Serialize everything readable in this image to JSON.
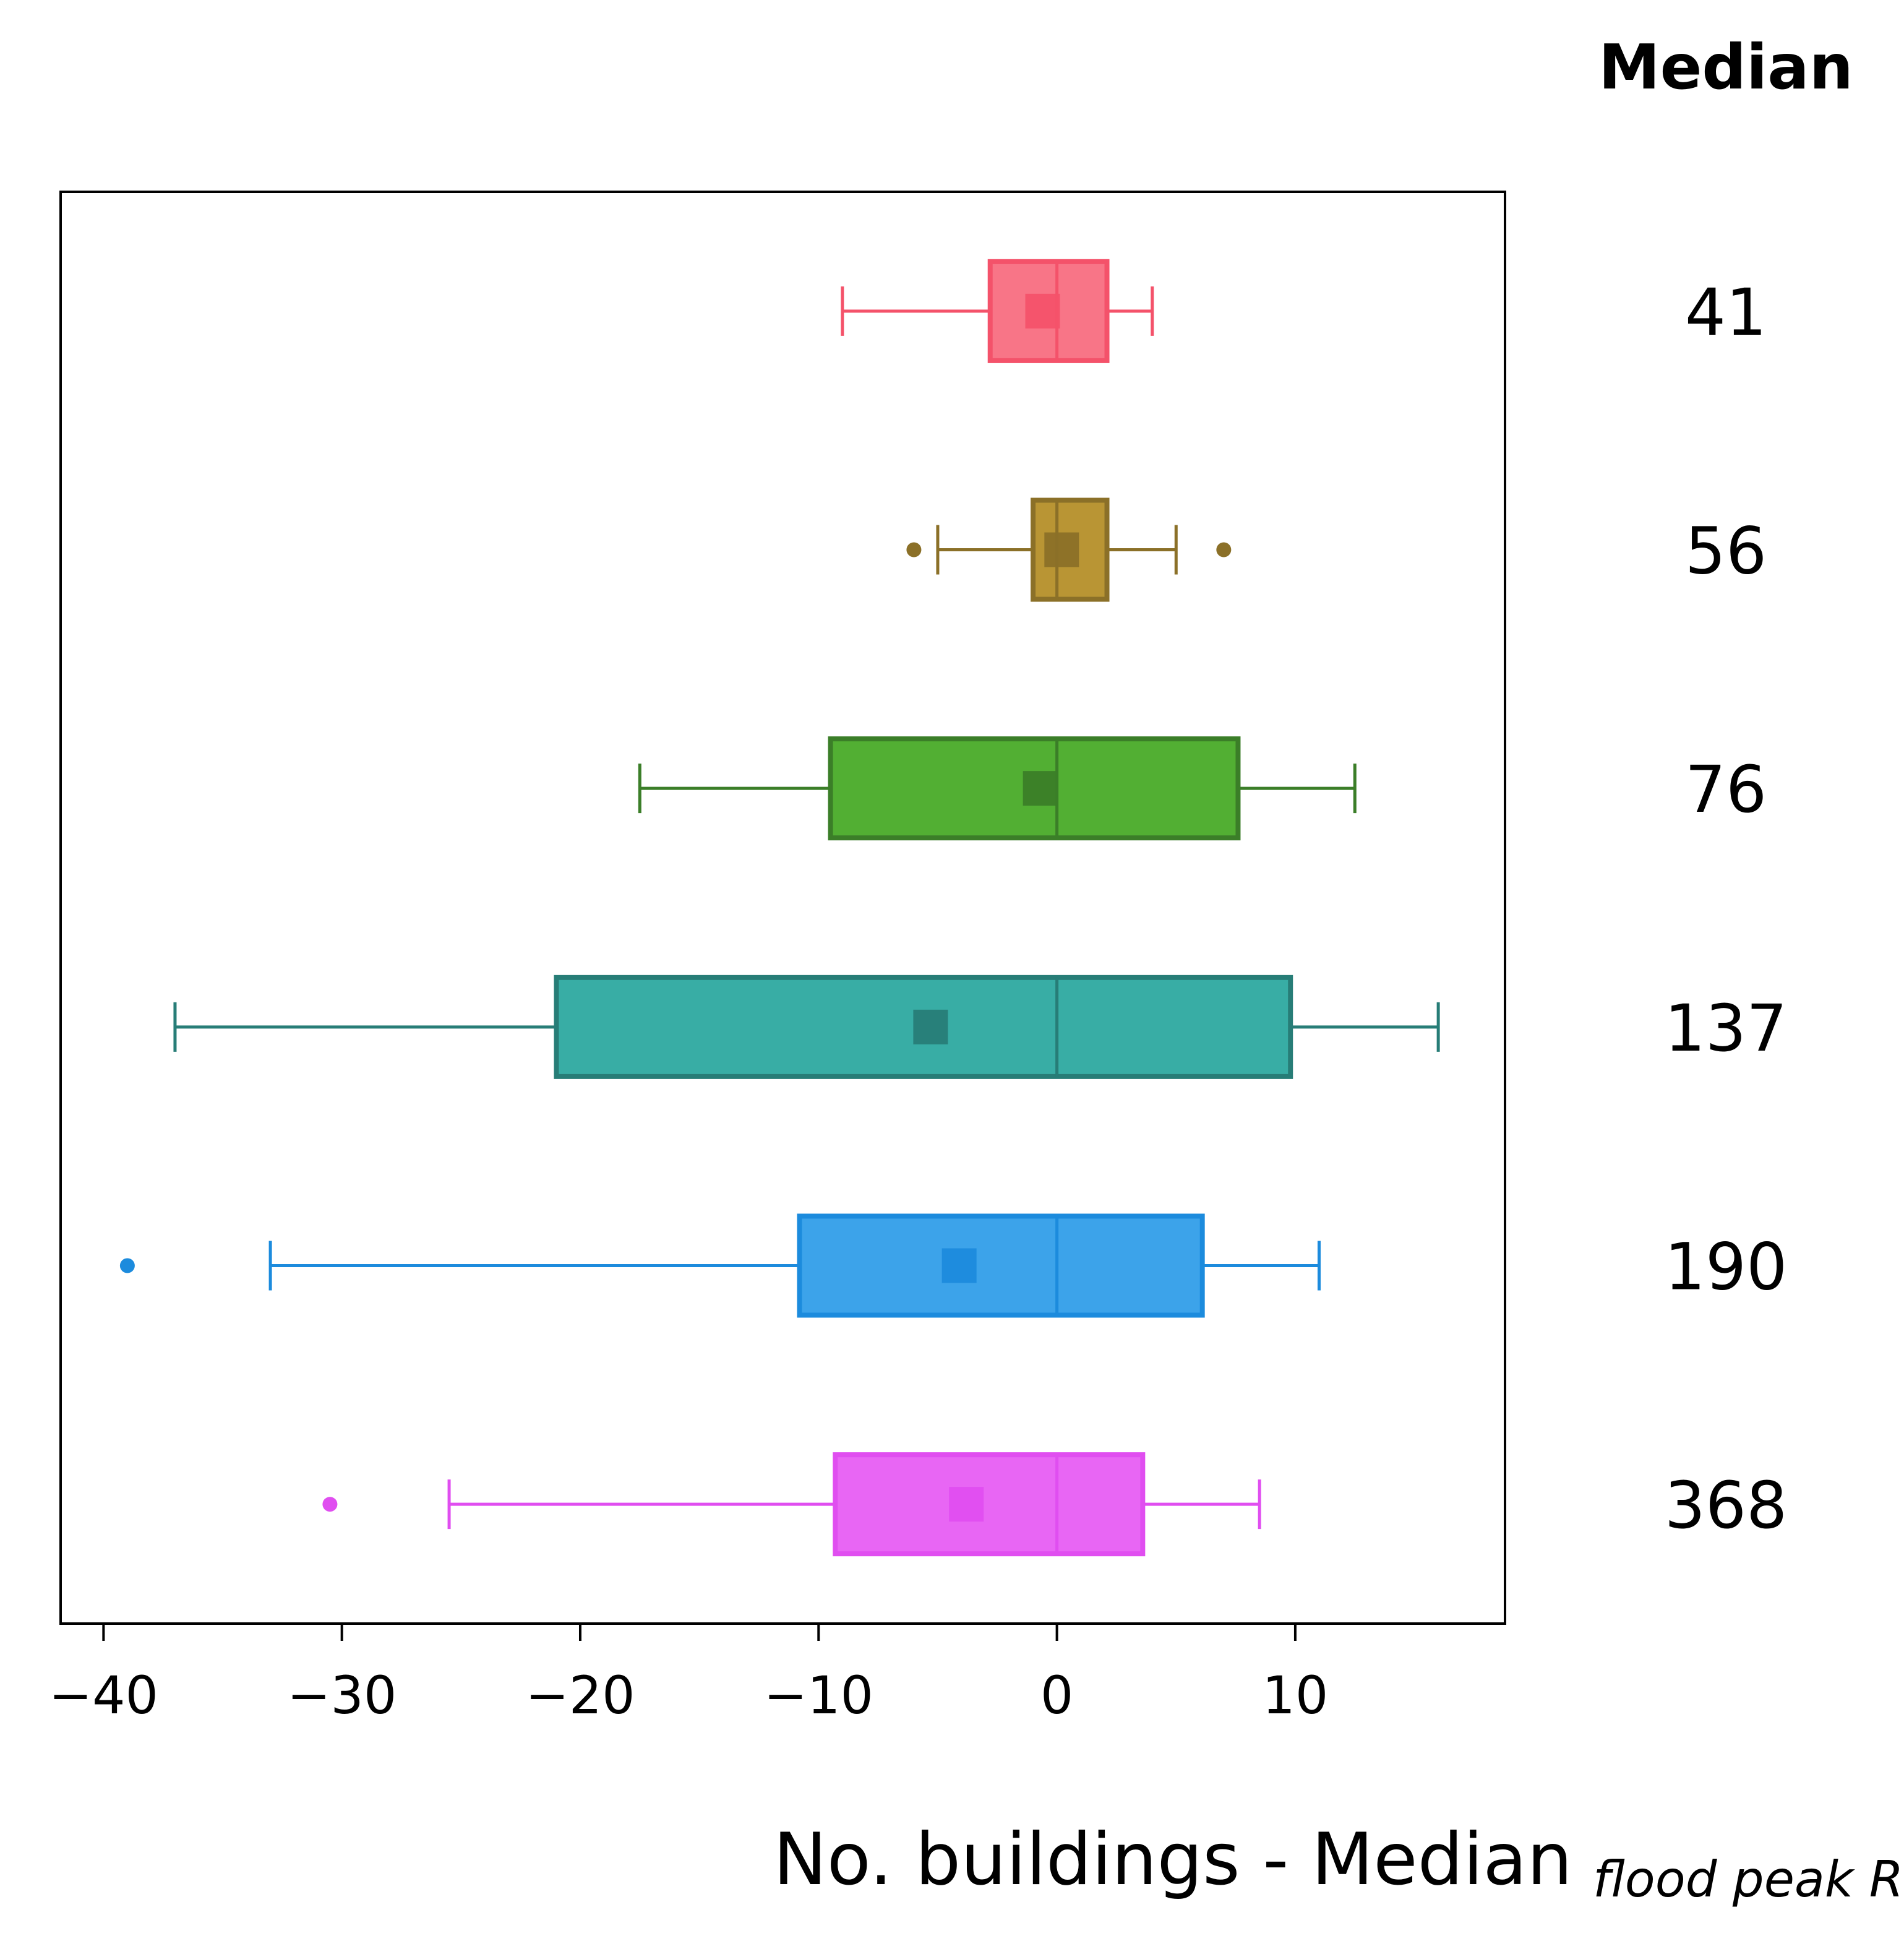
{
  "chart_data": {
    "type": "boxplot",
    "orientation": "horizontal",
    "xlabel": "No. buildings - Median",
    "xlabel_subscript": "flood peak RP",
    "xlim": [
      -41.8,
      18.8
    ],
    "xticks": [
      -40,
      -30,
      -20,
      -10,
      0,
      10
    ],
    "xtick_labels": [
      "−40",
      "−30",
      "−20",
      "−10",
      "0",
      "10"
    ],
    "grid": false,
    "side_column_title": "Median",
    "boxes": [
      {
        "median_label": "41",
        "whisker_low": -9,
        "q1": -2.8,
        "median": 0,
        "q3": 2.1,
        "whisker_high": 4,
        "mean": -0.6,
        "outliers": [],
        "fill": "#f87587",
        "edge": "#f4526a"
      },
      {
        "median_label": "56",
        "whisker_low": -5,
        "q1": -1.0,
        "median": 0,
        "q3": 2.1,
        "whisker_high": 5,
        "mean": 0.2,
        "outliers": [
          -6,
          7
        ],
        "fill": "#b99534",
        "edge": "#8b7028"
      },
      {
        "median_label": "76",
        "whisker_low": -17.5,
        "q1": -9.5,
        "median": 0,
        "q3": 7.6,
        "whisker_high": 12.5,
        "mean": -0.7,
        "outliers": [],
        "fill": "#52af33",
        "edge": "#3b7e28"
      },
      {
        "median_label": "137",
        "whisker_low": -37,
        "q1": -21,
        "median": 0,
        "q3": 9.8,
        "whisker_high": 16,
        "mean": -5.3,
        "outliers": [],
        "fill": "#38ada5",
        "edge": "#277d77"
      },
      {
        "median_label": "190",
        "whisker_low": -33,
        "q1": -10.8,
        "median": 0,
        "q3": 6.1,
        "whisker_high": 11,
        "mean": -4.1,
        "outliers": [
          -39
        ],
        "fill": "#3ca3ea",
        "edge": "#1c8bdd"
      },
      {
        "median_label": "368",
        "whisker_low": -25.5,
        "q1": -9.3,
        "median": 0,
        "q3": 3.6,
        "whisker_high": 8.5,
        "mean": -3.8,
        "outliers": [
          -30.5
        ],
        "fill": "#e866f4",
        "edge": "#e04ef0"
      }
    ]
  }
}
